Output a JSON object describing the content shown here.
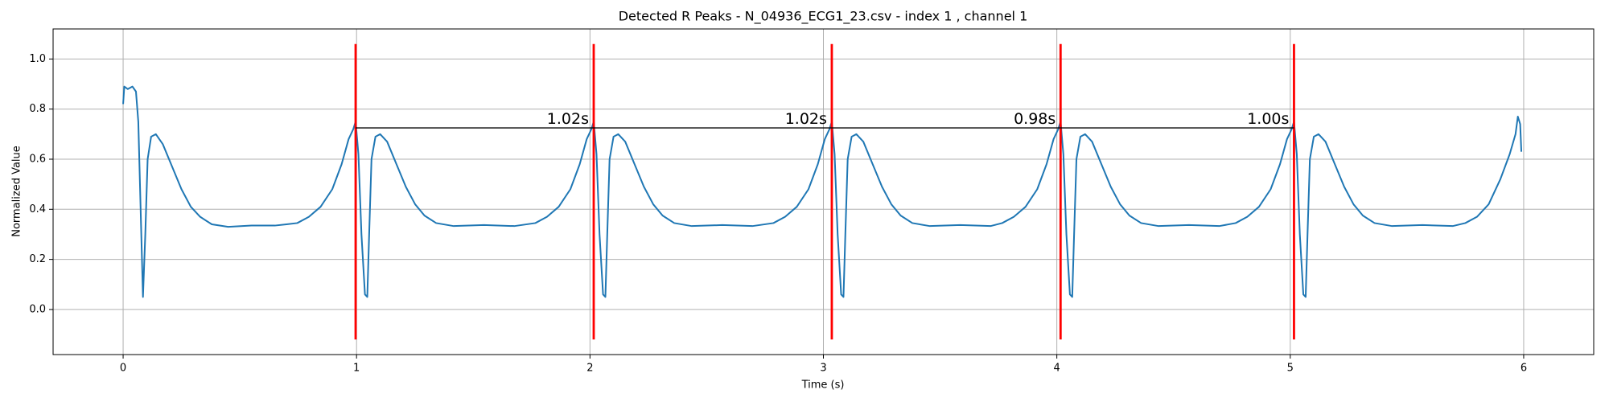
{
  "chart_data": {
    "type": "line",
    "title": "Detected R Peaks - N_04936_ECG1_23.csv - index 1 , channel 1",
    "xlabel": "Time (s)",
    "ylabel": "Normalized Value",
    "xlim": [
      -0.3,
      6.3
    ],
    "ylim": [
      -0.18,
      1.12
    ],
    "xticks": [
      0,
      1,
      2,
      3,
      4,
      5,
      6
    ],
    "yticks": [
      {
        "value": 0,
        "label": "0.0"
      },
      0.2,
      0.4,
      0.6,
      0.8,
      {
        "value": 1,
        "label": "1.0"
      }
    ],
    "grid": true,
    "series": [
      {
        "color": "#1f77b4",
        "x": [
          0,
          0.005,
          0.02,
          0.04,
          0.055,
          0.065,
          0.075,
          0.085,
          0.095,
          0.105,
          0.12,
          0.14,
          0.17,
          0.21,
          0.25,
          0.29,
          0.33,
          0.38,
          0.45,
          0.55,
          0.65,
          0.7,
          0.746,
          0.796,
          0.846,
          0.896,
          0.936,
          0.966,
          0.986,
          0.996,
          1.008,
          1.021,
          1.036,
          1.046,
          1.054,
          1.064,
          1.081,
          1.101,
          1.131,
          1.171,
          1.211,
          1.251,
          1.291,
          1.341,
          1.416,
          1.546,
          1.676,
          1.766,
          1.816,
          1.866,
          1.916,
          1.956,
          1.986,
          2.006,
          2.016,
          2.028,
          2.041,
          2.056,
          2.066,
          2.074,
          2.084,
          2.101,
          2.121,
          2.151,
          2.191,
          2.231,
          2.271,
          2.311,
          2.361,
          2.436,
          2.566,
          2.696,
          2.786,
          2.836,
          2.886,
          2.936,
          2.976,
          3.006,
          3.026,
          3.036,
          3.048,
          3.061,
          3.076,
          3.086,
          3.094,
          3.104,
          3.121,
          3.141,
          3.171,
          3.211,
          3.251,
          3.291,
          3.331,
          3.381,
          3.456,
          3.586,
          3.716,
          3.766,
          3.816,
          3.866,
          3.916,
          3.956,
          3.986,
          4.006,
          4.016,
          4.028,
          4.041,
          4.056,
          4.066,
          4.074,
          4.084,
          4.101,
          4.121,
          4.151,
          4.191,
          4.231,
          4.271,
          4.311,
          4.361,
          4.436,
          4.566,
          4.696,
          4.766,
          4.816,
          4.866,
          4.916,
          4.956,
          4.986,
          5.006,
          5.016,
          5.028,
          5.041,
          5.056,
          5.066,
          5.074,
          5.084,
          5.101,
          5.121,
          5.151,
          5.191,
          5.231,
          5.271,
          5.311,
          5.361,
          5.436,
          5.566,
          5.696,
          5.75,
          5.8,
          5.85,
          5.9,
          5.94,
          5.965,
          5.975,
          5.985,
          5.99
        ],
        "values": [
          0.82,
          0.89,
          0.88,
          0.89,
          0.87,
          0.75,
          0.4,
          0.05,
          0.3,
          0.6,
          0.69,
          0.7,
          0.66,
          0.57,
          0.48,
          0.41,
          0.37,
          0.34,
          0.33,
          0.335,
          0.335,
          0.34,
          0.345,
          0.37,
          0.41,
          0.48,
          0.58,
          0.68,
          0.72,
          0.75,
          0.62,
          0.3,
          0.06,
          0.05,
          0.3,
          0.6,
          0.69,
          0.7,
          0.67,
          0.58,
          0.49,
          0.42,
          0.375,
          0.345,
          0.333,
          0.337,
          0.333,
          0.345,
          0.37,
          0.41,
          0.48,
          0.58,
          0.68,
          0.72,
          0.75,
          0.62,
          0.3,
          0.06,
          0.05,
          0.3,
          0.6,
          0.69,
          0.7,
          0.67,
          0.58,
          0.49,
          0.42,
          0.375,
          0.345,
          0.333,
          0.337,
          0.333,
          0.345,
          0.37,
          0.41,
          0.48,
          0.58,
          0.68,
          0.72,
          0.75,
          0.62,
          0.3,
          0.06,
          0.05,
          0.3,
          0.6,
          0.69,
          0.7,
          0.67,
          0.58,
          0.49,
          0.42,
          0.375,
          0.345,
          0.333,
          0.337,
          0.333,
          0.345,
          0.37,
          0.41,
          0.48,
          0.58,
          0.68,
          0.72,
          0.75,
          0.62,
          0.3,
          0.06,
          0.05,
          0.3,
          0.6,
          0.69,
          0.7,
          0.67,
          0.58,
          0.49,
          0.42,
          0.375,
          0.345,
          0.333,
          0.337,
          0.333,
          0.345,
          0.37,
          0.41,
          0.48,
          0.58,
          0.68,
          0.72,
          0.75,
          0.62,
          0.3,
          0.06,
          0.05,
          0.3,
          0.6,
          0.69,
          0.7,
          0.67,
          0.58,
          0.49,
          0.42,
          0.375,
          0.345,
          0.333,
          0.337,
          0.333,
          0.345,
          0.37,
          0.42,
          0.52,
          0.62,
          0.7,
          0.77,
          0.74,
          0.63
        ]
      }
    ],
    "peak_lines": {
      "x": [
        0.996,
        2.016,
        3.036,
        4.016,
        5.016
      ],
      "ymin": -0.12,
      "ymax": 1.06,
      "color": "#ff0000"
    },
    "interval_y": 0.725,
    "annotations": [
      "1.02s",
      "1.02s",
      "0.98s",
      "1.00s"
    ]
  }
}
